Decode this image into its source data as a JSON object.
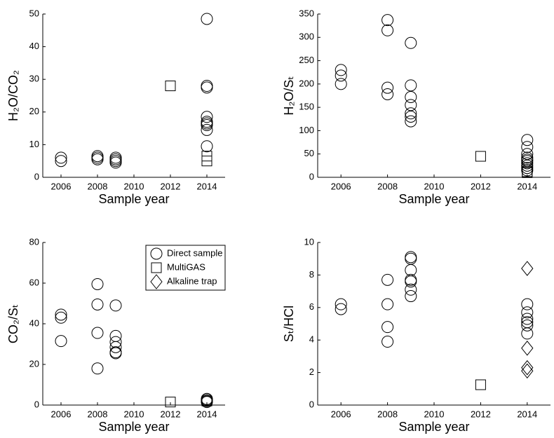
{
  "chart_data": [
    {
      "type": "scatter",
      "xlabel": "Sample year",
      "ylabel": "H₂O/CO₂",
      "xlim": [
        2005,
        2015
      ],
      "xticks": [
        2006,
        2008,
        2010,
        2012,
        2014
      ],
      "ylim": [
        0,
        50
      ],
      "yticks": [
        0,
        10,
        20,
        30,
        40,
        50
      ],
      "series": [
        {
          "marker": "circle",
          "color": "#000000",
          "x": [
            2006,
            2006,
            2008,
            2008,
            2008,
            2009,
            2009,
            2009,
            2009,
            2014,
            2014,
            2014,
            2014,
            2014,
            2014,
            2014,
            2014,
            2014
          ],
          "values": [
            5,
            6,
            5.5,
            6,
            6.5,
            4.5,
            5,
            5.5,
            6,
            48.5,
            28,
            27.5,
            18.5,
            17,
            16.5,
            16,
            14.5,
            9.5
          ]
        },
        {
          "marker": "square",
          "color": "#000000",
          "x": [
            2012,
            2014,
            2014
          ],
          "values": [
            28,
            5,
            6.5
          ]
        }
      ]
    },
    {
      "type": "scatter",
      "xlabel": "Sample year",
      "ylabel": "H₂O/Sₜ",
      "xlim": [
        2005,
        2015
      ],
      "xticks": [
        2006,
        2008,
        2010,
        2012,
        2014
      ],
      "ylim": [
        0,
        350
      ],
      "yticks": [
        0,
        50,
        100,
        150,
        200,
        250,
        300,
        350
      ],
      "series": [
        {
          "marker": "circle",
          "color": "#000000",
          "x": [
            2006,
            2006,
            2006,
            2008,
            2008,
            2008,
            2008,
            2009,
            2009,
            2009,
            2009,
            2009,
            2009,
            2009,
            2014,
            2014,
            2014,
            2014,
            2014,
            2014,
            2014,
            2014,
            2014,
            2014
          ],
          "values": [
            230,
            218,
            200,
            337,
            315,
            192,
            178,
            288,
            197,
            172,
            155,
            137,
            130,
            120,
            80,
            65,
            50,
            42,
            38,
            35,
            30,
            25,
            20,
            15
          ]
        },
        {
          "marker": "square",
          "color": "#000000",
          "x": [
            2012,
            2014,
            2014
          ],
          "values": [
            45,
            12,
            10
          ]
        }
      ]
    },
    {
      "type": "scatter",
      "xlabel": "Sample year",
      "ylabel": "CO₂/Sₜ",
      "xlim": [
        2005,
        2015
      ],
      "xticks": [
        2006,
        2008,
        2010,
        2012,
        2014
      ],
      "ylim": [
        0,
        80
      ],
      "yticks": [
        0,
        20,
        40,
        60,
        80
      ],
      "legend": "upper right",
      "series": [
        {
          "name": "Direct sample",
          "marker": "circle",
          "color": "#000000",
          "x": [
            2006,
            2006,
            2006,
            2008,
            2008,
            2008,
            2008,
            2009,
            2009,
            2009,
            2009,
            2009,
            2009,
            2014,
            2014,
            2014,
            2014
          ],
          "values": [
            44.5,
            43,
            31.5,
            59.5,
            49.5,
            35.5,
            18,
            49,
            34,
            31,
            28.5,
            26,
            25.5,
            3,
            2.5,
            2,
            1.5
          ]
        },
        {
          "name": "MultiGAS",
          "marker": "square",
          "color": "#000000",
          "x": [
            2012,
            2014
          ],
          "values": [
            1.5,
            2
          ]
        },
        {
          "name": "Alkaline trap",
          "marker": "diamond",
          "color": "#000000",
          "x": [],
          "values": []
        }
      ]
    },
    {
      "type": "scatter",
      "xlabel": "Sample year",
      "ylabel": "Sₜ/HCl",
      "xlim": [
        2005,
        2015
      ],
      "xticks": [
        2006,
        2008,
        2010,
        2012,
        2014
      ],
      "ylim": [
        0,
        10
      ],
      "yticks": [
        0,
        2,
        4,
        6,
        8,
        10
      ],
      "series": [
        {
          "marker": "circle",
          "color": "#000000",
          "x": [
            2006,
            2006,
            2008,
            2008,
            2008,
            2008,
            2009,
            2009,
            2009,
            2009,
            2009,
            2009,
            2009,
            2014,
            2014,
            2014,
            2014,
            2014,
            2014
          ],
          "values": [
            6.2,
            5.9,
            7.7,
            6.2,
            4.8,
            3.9,
            9.1,
            9.0,
            8.3,
            7.7,
            7.6,
            7.1,
            6.7,
            6.2,
            5.7,
            5.3,
            5.1,
            4.9,
            4.4
          ]
        },
        {
          "marker": "square",
          "color": "#000000",
          "x": [
            2012
          ],
          "values": [
            1.25
          ]
        },
        {
          "marker": "diamond",
          "color": "#000000",
          "x": [
            2014,
            2014,
            2014,
            2014
          ],
          "values": [
            8.4,
            3.5,
            2.3,
            2.1
          ]
        }
      ]
    }
  ]
}
